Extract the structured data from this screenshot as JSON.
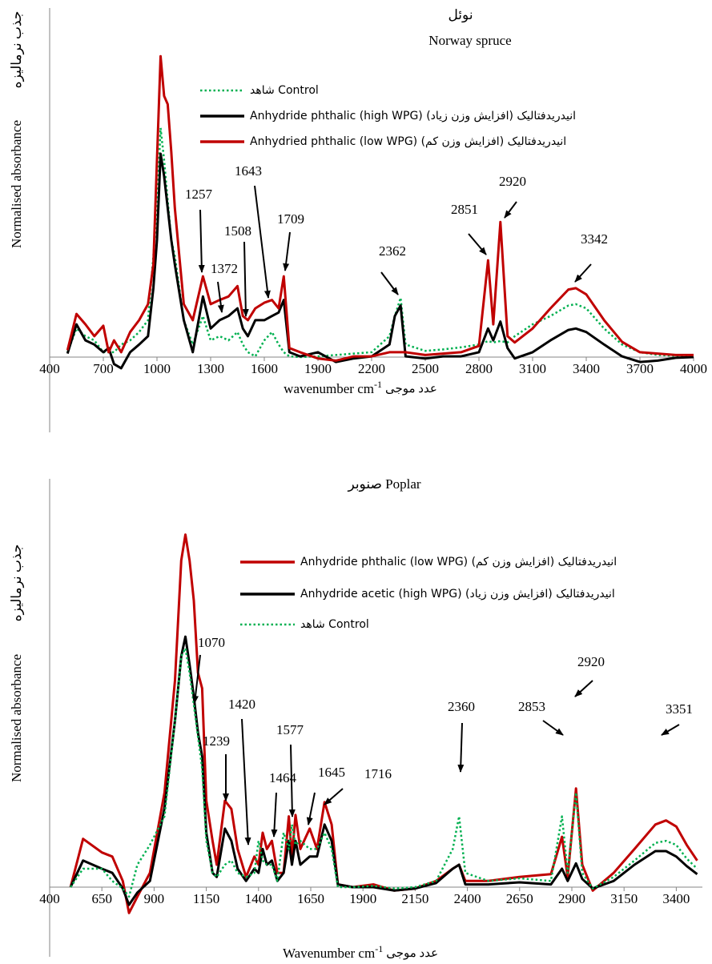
{
  "chart_data": [
    {
      "type": "line",
      "title_fa": "نوئل",
      "title": "Norway spruce",
      "y_label": "Normalised absorbance",
      "y_label_fa": "جذب نرماليزه",
      "x_label": "wavenumber cm",
      "x_label_sup": "-1",
      "x_label_fa": "عدد موجی",
      "xlim": [
        400,
        4000
      ],
      "xticks": [
        400,
        700,
        1000,
        1300,
        1600,
        1900,
        2200,
        2500,
        2800,
        3100,
        3400,
        3700,
        4000
      ],
      "ylim": [
        -1,
        5
      ],
      "x": [
        500,
        550,
        600,
        650,
        700,
        730,
        760,
        800,
        850,
        900,
        950,
        980,
        1000,
        1020,
        1040,
        1060,
        1080,
        1100,
        1150,
        1200,
        1257,
        1300,
        1350,
        1400,
        1450,
        1480,
        1508,
        1550,
        1600,
        1643,
        1680,
        1709,
        1740,
        1800,
        1900,
        2000,
        2100,
        2200,
        2300,
        2330,
        2362,
        2390,
        2500,
        2600,
        2700,
        2800,
        2851,
        2880,
        2920,
        2960,
        3000,
        3100,
        3200,
        3300,
        3342,
        3400,
        3500,
        3600,
        3700,
        3800,
        3900,
        4000
      ],
      "series": [
        {
          "name": "شاهد Control",
          "color": "#00b050",
          "dash": true,
          "values": [
            0.07,
            0.41,
            0.3,
            0.24,
            0.07,
            0.07,
            0.07,
            0.18,
            0.24,
            0.36,
            0.53,
            1.45,
            2.14,
            3.29,
            2.83,
            2.25,
            1.68,
            1.45,
            0.53,
            0.18,
            0.59,
            0.24,
            0.3,
            0.24,
            0.36,
            0.18,
            0.07,
            0.01,
            0.24,
            0.36,
            0.18,
            0.07,
            0.01,
            0,
            0.01,
            0.03,
            0.05,
            0.07,
            0.3,
            0.59,
            0.85,
            0.18,
            0.09,
            0.11,
            0.14,
            0.18,
            0.23,
            0.21,
            0.23,
            0.21,
            0.3,
            0.47,
            0.59,
            0.74,
            0.76,
            0.7,
            0.41,
            0.18,
            0.07,
            0.03,
            0.02,
            0.01
          ]
        },
        {
          "name": "Anhydride phthalic (high WPG) (افزایش وزن زیاد) انیدریدفتالیک",
          "color": "#000000",
          "dash": false,
          "values": [
            0.05,
            0.47,
            0.24,
            0.18,
            0.07,
            0.13,
            -0.1,
            -0.16,
            0.07,
            0.18,
            0.3,
            0.99,
            1.68,
            2.92,
            2.6,
            2.14,
            1.68,
            1.33,
            0.53,
            0.07,
            0.87,
            0.41,
            0.53,
            0.59,
            0.7,
            0.41,
            0.3,
            0.53,
            0.53,
            0.59,
            0.64,
            0.82,
            0.07,
            0.01,
            0.07,
            -0.07,
            -0.02,
            0.01,
            0.18,
            0.59,
            0.74,
            0.01,
            -0.02,
            0.01,
            0.01,
            0.07,
            0.41,
            0.24,
            0.51,
            0.13,
            -0.02,
            0.07,
            0.24,
            0.39,
            0.41,
            0.36,
            0.18,
            0.01,
            -0.07,
            -0.05,
            -0.01,
            0
          ]
        },
        {
          "name": "Anhydried phthalic  (low WPG) (افزایش وزن کم) انیدریدفتالیک",
          "color": "#c00000",
          "dash": false,
          "values": [
            0.1,
            0.62,
            0.47,
            0.3,
            0.45,
            0.07,
            0.24,
            0.07,
            0.36,
            0.53,
            0.76,
            1.33,
            2.83,
            4.32,
            3.75,
            3.63,
            2.94,
            2.14,
            0.76,
            0.53,
            1.16,
            0.76,
            0.82,
            0.87,
            1.02,
            0.59,
            0.53,
            0.7,
            0.78,
            0.82,
            0.7,
            1.16,
            0.13,
            0.07,
            -0.02,
            -0.05,
            0.01,
            0.01,
            0.07,
            0.07,
            0.07,
            0.07,
            0.03,
            0.05,
            0.07,
            0.16,
            1.39,
            0.47,
            1.94,
            0.3,
            0.21,
            0.41,
            0.7,
            0.97,
            0.99,
            0.9,
            0.53,
            0.22,
            0.07,
            0.05,
            0.03,
            0.03
          ]
        }
      ],
      "annotations": [
        "1257",
        "1372",
        "1508",
        "1643",
        "1709",
        "2362",
        "2851",
        "2920",
        "3342"
      ]
    },
    {
      "type": "line",
      "title": "صنوبر Poplar",
      "y_label": "Normalised absorbance",
      "y_label_fa": "جذب نرماليزه",
      "x_label": "Wavenumber cm",
      "x_label_sup": "-1",
      "x_label_fa": "عدد موجی",
      "xlim": [
        400,
        3525
      ],
      "xticks": [
        400,
        650,
        900,
        1150,
        1400,
        1650,
        1900,
        2150,
        2400,
        2650,
        2900,
        3150,
        3400
      ],
      "ylim": [
        -1,
        6
      ],
      "x": [
        500,
        560,
        650,
        700,
        750,
        780,
        820,
        880,
        950,
        1000,
        1030,
        1050,
        1070,
        1090,
        1110,
        1130,
        1150,
        1180,
        1200,
        1239,
        1270,
        1300,
        1340,
        1380,
        1400,
        1420,
        1440,
        1464,
        1490,
        1520,
        1545,
        1560,
        1577,
        1600,
        1645,
        1680,
        1716,
        1750,
        1780,
        1850,
        1950,
        2050,
        2150,
        2250,
        2330,
        2360,
        2390,
        2500,
        2650,
        2800,
        2853,
        2880,
        2920,
        2950,
        3000,
        3100,
        3200,
        3300,
        3351,
        3400,
        3450,
        3500
      ],
      "series": [
        {
          "name": "Anhydride phthalic (low WPG) (افزایش وزن کم) انیدریدفتالیک",
          "color": "#c00000",
          "dash": false,
          "values": [
            0,
            0.71,
            0.51,
            0.45,
            0.09,
            -0.38,
            -0.14,
            0.21,
            1.39,
            3.04,
            4.8,
            5.18,
            4.8,
            4.21,
            3.15,
            2.92,
            1.27,
            0.68,
            0.33,
            1.27,
            1.15,
            0.56,
            0.15,
            0.45,
            0.33,
            0.8,
            0.56,
            0.68,
            0.21,
            0.21,
            1.04,
            0.45,
            1.06,
            0.56,
            0.86,
            0.56,
            1.25,
            0.92,
            0.04,
            0,
            0.04,
            -0.05,
            -0.02,
            0.09,
            0.27,
            0.33,
            0.09,
            0.09,
            0.15,
            0.19,
            0.74,
            0.15,
            1.45,
            0.33,
            -0.05,
            0.21,
            0.56,
            0.92,
            0.98,
            0.89,
            0.62,
            0.39
          ]
        },
        {
          "name": "Anhydride acetic (high WPG) (افزایش وزن زیاد) انیدریدفتالیک",
          "color": "#000000",
          "dash": false,
          "values": [
            0,
            0.39,
            0.27,
            0.21,
            -0.02,
            -0.26,
            -0.08,
            0.09,
            1.16,
            2.45,
            3.39,
            3.68,
            3.27,
            2.8,
            2.27,
            1.92,
            0.8,
            0.21,
            0.15,
            0.86,
            0.68,
            0.27,
            0.09,
            0.27,
            0.21,
            0.56,
            0.33,
            0.39,
            0.09,
            0.21,
            0.68,
            0.33,
            0.68,
            0.33,
            0.45,
            0.45,
            0.92,
            0.68,
            0.04,
            0,
            0,
            -0.05,
            -0.02,
            0.06,
            0.27,
            0.33,
            0.04,
            0.04,
            0.07,
            0.04,
            0.27,
            0.09,
            0.35,
            0.12,
            -0.02,
            0.09,
            0.33,
            0.53,
            0.53,
            0.45,
            0.31,
            0.19
          ]
        },
        {
          "name": "شاهد Control",
          "color": "#00b050",
          "dash": true,
          "values": [
            0,
            0.27,
            0.27,
            0.09,
            -0.02,
            -0.14,
            0.33,
            0.62,
            1.04,
            2.45,
            3.39,
            3.51,
            3.15,
            2.68,
            2.21,
            1.74,
            0.68,
            0.21,
            0.15,
            0.33,
            0.39,
            0.21,
            0.15,
            0.21,
            0.68,
            0.39,
            0.33,
            0.33,
            0.09,
            0.8,
            0.56,
            0.92,
            0.62,
            0.68,
            0.56,
            0.56,
            0.8,
            0.56,
            0,
            0,
            0.02,
            -0.02,
            0,
            0.09,
            0.56,
            1.04,
            0.21,
            0.09,
            0.13,
            0.09,
            1.04,
            0.21,
            1.39,
            0.21,
            -0.02,
            0.15,
            0.39,
            0.65,
            0.68,
            0.62,
            0.42,
            0.27
          ]
        }
      ],
      "annotations": [
        "1070",
        "1420",
        "1239",
        "1464",
        "1577",
        "1645",
        "1716",
        "2360",
        "2853",
        "2920",
        "3351"
      ]
    }
  ]
}
